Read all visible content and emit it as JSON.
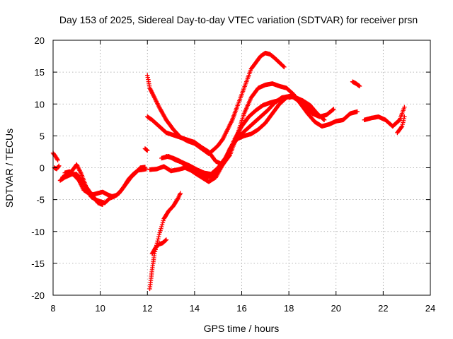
{
  "chart_data": {
    "type": "scatter",
    "title": "Day 153 of 2025, Sidereal Day-to-day VTEC variation (SDTVAR) for receiver prsn",
    "xlabel": "GPS time / hours",
    "ylabel": "SDTVAR / TECUs",
    "xlim": [
      8,
      24
    ],
    "ylim": [
      -20,
      20
    ],
    "xticks": [
      8,
      10,
      12,
      14,
      16,
      18,
      20,
      22,
      24
    ],
    "yticks": [
      -20,
      -15,
      -10,
      -5,
      0,
      5,
      10,
      15,
      20
    ],
    "grid": true,
    "marker": "plus",
    "color": "#ff0000",
    "series": [
      {
        "x": [
          8.0,
          8.1,
          8.2
        ],
        "y": [
          2.3,
          1.8,
          1.2
        ]
      },
      {
        "x": [
          8.05,
          8.15,
          8.25
        ],
        "y": [
          0.0,
          -0.2,
          0.3
        ]
      },
      {
        "x": [
          8.4,
          8.6,
          8.8,
          9.0,
          9.2,
          9.4,
          9.6,
          9.8,
          10.0,
          10.2,
          10.4,
          10.6,
          10.8,
          11.0,
          11.2,
          11.4,
          11.6,
          11.8,
          11.95
        ],
        "y": [
          -1.5,
          -1.0,
          -0.5,
          0.5,
          -1.0,
          -3.0,
          -4.5,
          -5.0,
          -5.3,
          -5.5,
          -4.8,
          -4.5,
          -4.0,
          -3.0,
          -1.8,
          -1.0,
          -0.4,
          -0.3,
          -0.2
        ]
      },
      {
        "x": [
          8.5,
          8.7,
          8.9,
          9.1,
          9.3,
          9.5,
          9.7,
          9.9,
          10.1,
          10.3,
          10.5,
          10.7,
          10.9,
          11.1,
          11.3,
          11.5,
          11.7,
          11.9
        ],
        "y": [
          -0.8,
          -0.6,
          -1.2,
          -2.0,
          -3.5,
          -4.0,
          -4.2,
          -4.0,
          -3.8,
          -4.2,
          -4.5,
          -4.3,
          -3.5,
          -2.5,
          -1.5,
          -0.8,
          0.0,
          0.1
        ]
      },
      {
        "x": [
          8.3,
          8.5,
          8.8,
          9.0,
          9.3,
          9.6,
          9.9,
          10.1
        ],
        "y": [
          -2.0,
          -1.5,
          -1.0,
          -1.0,
          -2.5,
          -4.0,
          -5.5,
          -5.8
        ]
      },
      {
        "x": [
          11.9,
          12.0
        ],
        "y": [
          3.0,
          2.7
        ]
      },
      {
        "x": [
          12.0,
          12.1,
          12.3,
          12.5,
          12.8,
          13.1,
          13.4,
          13.7,
          14.0,
          14.3,
          14.6,
          14.8,
          15.0,
          15.2,
          15.4,
          15.6,
          15.8,
          16.0,
          16.2,
          16.4,
          16.6,
          16.8,
          17.0,
          17.2,
          17.4,
          17.6,
          17.8
        ],
        "y": [
          14.5,
          12.5,
          11.0,
          9.5,
          7.5,
          6.0,
          4.8,
          4.2,
          3.8,
          3.0,
          2.2,
          2.8,
          3.5,
          4.5,
          6.0,
          7.5,
          9.5,
          11.5,
          13.5,
          15.5,
          16.5,
          17.5,
          18.0,
          17.8,
          17.2,
          16.5,
          15.8
        ]
      },
      {
        "x": [
          12.0,
          12.2,
          12.5,
          12.8,
          13.2,
          13.6,
          14.0,
          14.3,
          14.6,
          14.9,
          15.2,
          15.5,
          15.8,
          16.1,
          16.4,
          16.7,
          17.0,
          17.3,
          17.6,
          17.9,
          18.2
        ],
        "y": [
          8.0,
          7.5,
          6.5,
          5.5,
          5.0,
          4.5,
          4.0,
          3.2,
          2.5,
          1.0,
          0.5,
          2.0,
          5.0,
          8.5,
          11.0,
          12.5,
          13.0,
          13.2,
          12.8,
          12.5,
          11.5
        ]
      },
      {
        "x": [
          12.1,
          12.4,
          12.7,
          13.0,
          13.3,
          13.6,
          13.9,
          14.2,
          14.5,
          14.8,
          15.1,
          15.4,
          15.7,
          16.0,
          16.3,
          16.6,
          16.9,
          17.2,
          17.5,
          17.8,
          18.1,
          18.4,
          18.7,
          19.0,
          19.3,
          19.6,
          19.9
        ],
        "y": [
          -0.3,
          -0.2,
          0.2,
          -0.5,
          -0.3,
          0.0,
          -0.5,
          -1.0,
          -1.5,
          -1.2,
          0.0,
          2.0,
          4.5,
          6.5,
          8.0,
          9.0,
          9.8,
          10.2,
          10.5,
          11.0,
          11.3,
          10.5,
          9.5,
          8.5,
          8.0,
          8.3,
          9.2
        ]
      },
      {
        "x": [
          12.8,
          13.1,
          13.4,
          13.7,
          14.0,
          14.3,
          14.6,
          14.9,
          15.2,
          15.5,
          15.8,
          16.1,
          16.4,
          16.7,
          17.0,
          17.3,
          17.6,
          17.9,
          18.2,
          18.5,
          18.8,
          19.1,
          19.4,
          19.7,
          20.0,
          20.3,
          20.6,
          20.9
        ],
        "y": [
          1.8,
          1.5,
          1.0,
          0.0,
          -0.8,
          -1.5,
          -2.2,
          -1.5,
          0.5,
          3.0,
          4.5,
          5.0,
          5.3,
          6.0,
          7.0,
          8.5,
          10.0,
          11.0,
          11.5,
          10.0,
          8.5,
          7.2,
          6.5,
          6.8,
          7.3,
          7.5,
          8.5,
          8.8
        ]
      },
      {
        "x": [
          12.6,
          12.9,
          13.2,
          13.5,
          13.8,
          14.1,
          14.4,
          14.7,
          15.0,
          15.3,
          15.6,
          15.9,
          16.2,
          16.5,
          16.8,
          17.1,
          17.4,
          17.7,
          18.0,
          18.3,
          18.6,
          18.9,
          19.2,
          19.5
        ],
        "y": [
          1.5,
          1.8,
          1.2,
          0.8,
          0.3,
          -0.3,
          -0.8,
          -1.0,
          0.0,
          1.5,
          3.5,
          5.0,
          6.0,
          7.0,
          8.0,
          9.0,
          10.2,
          11.0,
          11.2,
          11.0,
          10.5,
          9.8,
          8.5,
          7.5
        ]
      },
      {
        "x": [
          12.1,
          12.2,
          12.3,
          12.5,
          12.7,
          12.9,
          13.1,
          13.3,
          13.4
        ],
        "y": [
          -19.0,
          -16.0,
          -13.5,
          -10.5,
          -8.0,
          -6.8,
          -6.0,
          -4.8,
          -4.0
        ]
      },
      {
        "x": [
          12.2,
          12.35,
          12.5,
          12.65,
          12.8
        ],
        "y": [
          -13.5,
          -12.5,
          -12.0,
          -11.8,
          -11.3
        ]
      },
      {
        "x": [
          20.7,
          20.85,
          21.0
        ],
        "y": [
          13.5,
          13.2,
          12.8
        ]
      },
      {
        "x": [
          21.2,
          21.5,
          21.8,
          22.1,
          22.4,
          22.7,
          22.9
        ],
        "y": [
          7.5,
          7.8,
          8.0,
          7.5,
          6.5,
          7.5,
          9.5
        ]
      },
      {
        "x": [
          22.6,
          22.8,
          22.9
        ],
        "y": [
          5.5,
          6.5,
          8.0
        ]
      },
      {
        "x": [
          18.0,
          18.2,
          18.4,
          18.6,
          18.8,
          19.0
        ],
        "y": [
          11.0,
          11.2,
          10.8,
          10.5,
          9.8,
          9.0
        ]
      }
    ]
  }
}
